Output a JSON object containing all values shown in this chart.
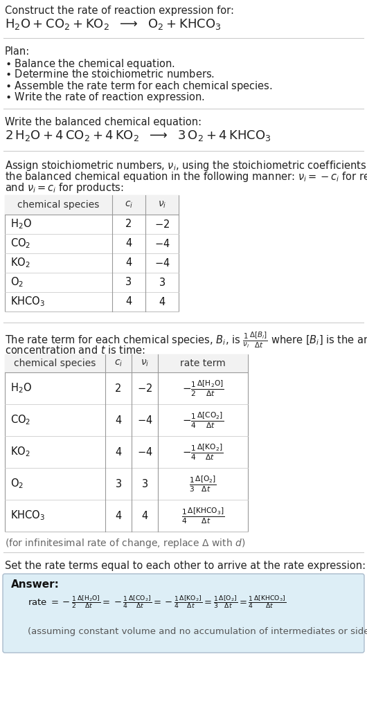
{
  "bg_color": "#ffffff",
  "text_color": "#222222",
  "gray_text": "#555555",
  "title_line1": "Construct the rate of reaction expression for:",
  "plan_header": "Plan:",
  "plan_items": [
    "\\bullet  Balance the chemical equation.",
    "\\bullet  Determine the stoichiometric numbers.",
    "\\bullet  Assemble the rate term for each chemical species.",
    "\\bullet  Write the rate of reaction expression."
  ],
  "balanced_header": "Write the balanced chemical equation:",
  "set_equal_text": "Set the rate terms equal to each other to arrive at the rate expression:",
  "answer_label": "Answer:",
  "answer_note": "(assuming constant volume and no accumulation of intermediates or side products)",
  "answer_bg": "#ddeef6",
  "answer_border": "#aabbcc"
}
